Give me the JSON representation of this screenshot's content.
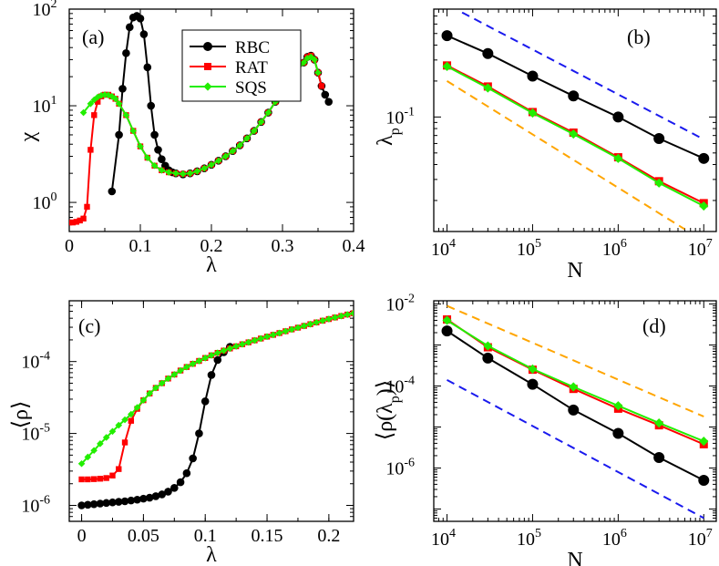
{
  "chart_data": [
    {
      "panel_label": "(a)",
      "type": "line",
      "xlabel": "λ",
      "ylabel": "χ",
      "xscale": "linear",
      "yscale": "log",
      "xlim": [
        0,
        0.4
      ],
      "ylim": [
        0.5,
        100
      ],
      "x_ticks": [
        0,
        0.1,
        0.2,
        0.3,
        0.4
      ],
      "x_tick_labels": [
        "0",
        "0.1",
        "0.2",
        "0.3",
        "0.4"
      ],
      "y_ticks": [
        1,
        10,
        100
      ],
      "y_tick_labels": [
        [
          "10",
          "0"
        ],
        [
          "10",
          "1"
        ],
        [
          "10",
          "2"
        ]
      ],
      "legend": {
        "position": "top-center",
        "entries": [
          "RBC",
          "RAT",
          "SQS"
        ]
      },
      "series": [
        {
          "name": "RBC",
          "color": "#000000",
          "marker": "circle",
          "x": [
            0.06,
            0.07,
            0.075,
            0.08,
            0.085,
            0.09,
            0.095,
            0.1,
            0.105,
            0.11,
            0.115,
            0.12,
            0.125,
            0.13,
            0.135,
            0.14,
            0.145,
            0.15,
            0.16,
            0.17,
            0.18,
            0.19,
            0.2,
            0.21,
            0.22,
            0.23,
            0.24,
            0.25,
            0.26,
            0.27,
            0.28,
            0.29,
            0.3,
            0.31,
            0.32,
            0.33,
            0.335,
            0.34,
            0.345,
            0.35,
            0.355,
            0.36,
            0.365
          ],
          "y": [
            1.3,
            5,
            15,
            35,
            65,
            82,
            85,
            80,
            55,
            25,
            10,
            5,
            3.5,
            2.8,
            2.4,
            2.15,
            2.05,
            2.0,
            1.95,
            2.0,
            2.1,
            2.25,
            2.45,
            2.7,
            3.0,
            3.4,
            3.9,
            4.6,
            5.5,
            6.8,
            8.5,
            11,
            14,
            18,
            23,
            28,
            32,
            33,
            30,
            22,
            16,
            13,
            11
          ]
        },
        {
          "name": "RAT",
          "color": "#ff0000",
          "marker": "square",
          "x": [
            0.0,
            0.005,
            0.01,
            0.015,
            0.02,
            0.025,
            0.03,
            0.035,
            0.04,
            0.045,
            0.05,
            0.055,
            0.06,
            0.065,
            0.07,
            0.08,
            0.09,
            0.1,
            0.11,
            0.12,
            0.13,
            0.14,
            0.15,
            0.16,
            0.17,
            0.18,
            0.19,
            0.2,
            0.21,
            0.22,
            0.23,
            0.24,
            0.25,
            0.26,
            0.27,
            0.28,
            0.29,
            0.3,
            0.31,
            0.32,
            0.33,
            0.335,
            0.34,
            0.345,
            0.35,
            0.355
          ],
          "y": [
            0.62,
            0.62,
            0.63,
            0.65,
            0.68,
            0.9,
            3.5,
            8,
            11,
            12.5,
            13,
            13,
            12.5,
            11.8,
            10.5,
            8,
            5.5,
            3.8,
            2.9,
            2.4,
            2.15,
            2.05,
            2.0,
            1.97,
            2.0,
            2.1,
            2.25,
            2.45,
            2.7,
            3.0,
            3.4,
            3.9,
            4.6,
            5.5,
            6.8,
            8.5,
            11,
            14,
            18,
            23,
            28,
            32,
            33,
            30,
            22,
            16
          ]
        },
        {
          "name": "SQS",
          "color": "#22ee00",
          "marker": "diamond",
          "x": [
            0.02,
            0.03,
            0.035,
            0.04,
            0.045,
            0.05,
            0.055,
            0.06,
            0.065,
            0.07,
            0.08,
            0.09,
            0.1,
            0.11,
            0.12,
            0.13,
            0.14,
            0.15,
            0.16,
            0.17,
            0.18,
            0.19,
            0.2,
            0.21,
            0.22,
            0.23,
            0.24,
            0.25,
            0.26,
            0.27,
            0.28,
            0.29,
            0.3,
            0.31,
            0.32,
            0.33,
            0.335,
            0.34,
            0.345,
            0.35
          ],
          "y": [
            8.5,
            10.5,
            11.5,
            12.3,
            12.8,
            13,
            12.9,
            12.5,
            11.8,
            10.5,
            8,
            5.5,
            3.8,
            2.9,
            2.4,
            2.15,
            2.05,
            2.0,
            1.97,
            2.0,
            2.1,
            2.25,
            2.45,
            2.7,
            3.0,
            3.4,
            3.9,
            4.6,
            5.5,
            6.8,
            8.5,
            11,
            14,
            18,
            23,
            28,
            31,
            32,
            30,
            22
          ]
        }
      ]
    },
    {
      "panel_label": "(b)",
      "type": "line",
      "xlabel": "N",
      "ylabel": "λp",
      "xscale": "log",
      "yscale": "log",
      "xlim": [
        7000,
        14000000
      ],
      "ylim": [
        0.011,
        0.8
      ],
      "x_ticks": [
        10000,
        100000,
        1000000,
        10000000
      ],
      "x_tick_labels": [
        [
          "10",
          "4"
        ],
        [
          "10",
          "5"
        ],
        [
          "10",
          "6"
        ],
        [
          "10",
          "7"
        ]
      ],
      "y_ticks": [
        0.1
      ],
      "y_tick_labels": [
        [
          "10",
          "-1"
        ]
      ],
      "series": [
        {
          "name": "RBC",
          "color": "#000000",
          "marker": "circle",
          "x": [
            10000,
            30000,
            100000,
            300000,
            1000000,
            3000000,
            10000000
          ],
          "y": [
            0.48,
            0.34,
            0.22,
            0.15,
            0.1,
            0.066,
            0.045
          ]
        },
        {
          "name": "RAT",
          "color": "#ff0000",
          "marker": "square",
          "x": [
            10000,
            30000,
            100000,
            300000,
            1000000,
            3000000,
            10000000
          ],
          "y": [
            0.27,
            0.18,
            0.11,
            0.074,
            0.046,
            0.029,
            0.019
          ]
        },
        {
          "name": "SQS",
          "color": "#22ee00",
          "marker": "diamond",
          "x": [
            10000,
            30000,
            100000,
            300000,
            1000000,
            3000000,
            10000000
          ],
          "y": [
            0.265,
            0.175,
            0.108,
            0.072,
            0.045,
            0.028,
            0.018
          ]
        },
        {
          "name": "guide-blue",
          "color": "#1a1aee",
          "dashed": true,
          "x": [
            15000,
            10000000
          ],
          "y": [
            0.75,
            0.065
          ]
        },
        {
          "name": "guide-orange",
          "color": "#ffa500",
          "dashed": true,
          "x": [
            10000,
            6000000
          ],
          "y": [
            0.2,
            0.0115
          ]
        }
      ]
    },
    {
      "panel_label": "(c)",
      "type": "line",
      "xlabel": "λ",
      "ylabel": "⟨ρ⟩",
      "xscale": "linear",
      "yscale": "log",
      "xlim": [
        -0.01,
        0.22
      ],
      "ylim": [
        6e-07,
        0.0007
      ],
      "x_ticks": [
        0,
        0.05,
        0.1,
        0.15,
        0.2
      ],
      "x_tick_labels": [
        "0",
        "0.05",
        "0.1",
        "0.15",
        "0.2"
      ],
      "y_ticks": [
        1e-06,
        1e-05,
        0.0001
      ],
      "y_tick_labels": [
        [
          "10",
          "-6"
        ],
        [
          "10",
          "-5"
        ],
        [
          "10",
          "-4"
        ]
      ],
      "series": [
        {
          "name": "RBC",
          "color": "#000000",
          "marker": "circle",
          "x": [
            0.0,
            0.005,
            0.01,
            0.015,
            0.02,
            0.025,
            0.03,
            0.035,
            0.04,
            0.045,
            0.05,
            0.055,
            0.06,
            0.065,
            0.07,
            0.075,
            0.08,
            0.085,
            0.09,
            0.095,
            0.1,
            0.105,
            0.11,
            0.115,
            0.12
          ],
          "y": [
            1e-06,
            1.02e-06,
            1.04e-06,
            1.06e-06,
            1.08e-06,
            1.1e-06,
            1.12e-06,
            1.14e-06,
            1.17e-06,
            1.2e-06,
            1.24e-06,
            1.28e-06,
            1.34e-06,
            1.42e-06,
            1.55e-06,
            1.75e-06,
            2.1e-06,
            2.8e-06,
            4.5e-06,
            1e-05,
            2.8e-05,
            6.5e-05,
            0.000105,
            0.000135,
            0.00016
          ]
        },
        {
          "name": "RAT",
          "color": "#ff0000",
          "marker": "square",
          "x": [
            0.0,
            0.005,
            0.01,
            0.015,
            0.02,
            0.025,
            0.03,
            0.035,
            0.04,
            0.045,
            0.05,
            0.055,
            0.06,
            0.065,
            0.07,
            0.075,
            0.08,
            0.085,
            0.09,
            0.095,
            0.1,
            0.105,
            0.11,
            0.115,
            0.12,
            0.125,
            0.13,
            0.135,
            0.14,
            0.145,
            0.15,
            0.155,
            0.16,
            0.165,
            0.17,
            0.175,
            0.18,
            0.185,
            0.19,
            0.195,
            0.2,
            0.205,
            0.21,
            0.215,
            0.22
          ],
          "y": [
            2.3e-06,
            2.3e-06,
            2.32e-06,
            2.35e-06,
            2.4e-06,
            2.6e-06,
            3.2e-06,
            7.5e-06,
            1.5e-05,
            2.2e-05,
            2.9e-05,
            3.6e-05,
            4.3e-05,
            5e-05,
            5.8e-05,
            6.6e-05,
            7.5e-05,
            8.4e-05,
            9.3e-05,
            0.000102,
            0.000112,
            0.000122,
            0.000132,
            0.000142,
            0.000152,
            0.000163,
            0.000174,
            0.000185,
            0.000197,
            0.000209,
            0.000222,
            0.000235,
            0.000249,
            0.000264,
            0.00028,
            0.000296,
            0.000313,
            0.000331,
            0.00035,
            0.00037,
            0.00039,
            0.00041,
            0.00043,
            0.00045,
            0.00047
          ]
        },
        {
          "name": "SQS",
          "color": "#22ee00",
          "marker": "diamond",
          "x": [
            0.0,
            0.005,
            0.01,
            0.015,
            0.02,
            0.025,
            0.03,
            0.035,
            0.04,
            0.045,
            0.05,
            0.055,
            0.06,
            0.065,
            0.07,
            0.075,
            0.08,
            0.085,
            0.09,
            0.095,
            0.1,
            0.105,
            0.11,
            0.115,
            0.12,
            0.125,
            0.13,
            0.135,
            0.14,
            0.145,
            0.15,
            0.155,
            0.16,
            0.165,
            0.17,
            0.175,
            0.18,
            0.185,
            0.19,
            0.195,
            0.2,
            0.205,
            0.21,
            0.215,
            0.22
          ],
          "y": [
            3.8e-06,
            4.7e-06,
            5.8e-06,
            7.2e-06,
            8.8e-06,
            1.07e-05,
            1.3e-05,
            1.55e-05,
            1.85e-05,
            2.3e-05,
            2.9e-05,
            3.6e-05,
            4.3e-05,
            5e-05,
            5.8e-05,
            6.6e-05,
            7.5e-05,
            8.4e-05,
            9.3e-05,
            0.000102,
            0.000112,
            0.000122,
            0.000132,
            0.000142,
            0.000152,
            0.000163,
            0.000174,
            0.000185,
            0.000197,
            0.000209,
            0.000222,
            0.000235,
            0.000249,
            0.000264,
            0.00028,
            0.000296,
            0.000313,
            0.000331,
            0.00035,
            0.00037,
            0.00039,
            0.00041,
            0.00043,
            0.00045,
            0.00047
          ]
        }
      ]
    },
    {
      "panel_label": "(d)",
      "type": "line",
      "xlabel": "N",
      "ylabel": "⟨ρ(λp)⟩",
      "xscale": "log",
      "yscale": "log",
      "xlim": [
        7000,
        14000000
      ],
      "ylim": [
        5e-08,
        0.012
      ],
      "x_ticks": [
        10000,
        100000,
        1000000,
        10000000
      ],
      "x_tick_labels": [
        [
          "10",
          "4"
        ],
        [
          "10",
          "5"
        ],
        [
          "10",
          "6"
        ],
        [
          "10",
          "7"
        ]
      ],
      "y_ticks": [
        1e-06,
        0.0001,
        0.01
      ],
      "y_tick_labels": [
        [
          "10",
          "-6"
        ],
        [
          "10",
          "-4"
        ],
        [
          "10",
          "-2"
        ]
      ],
      "series": [
        {
          "name": "RBC",
          "color": "#000000",
          "marker": "circle",
          "x": [
            10000,
            30000,
            100000,
            300000,
            1000000,
            3000000,
            10000000
          ],
          "y": [
            0.0022,
            0.00048,
            0.00011,
            2.6e-05,
            7e-06,
            1.8e-06,
            5e-07
          ]
        },
        {
          "name": "RAT",
          "color": "#ff0000",
          "marker": "square",
          "x": [
            10000,
            30000,
            100000,
            300000,
            1000000,
            3000000,
            10000000
          ],
          "y": [
            0.0042,
            0.00088,
            0.00025,
            8.5e-05,
            2.8e-05,
            1.1e-05,
            3.8e-06
          ]
        },
        {
          "name": "SQS",
          "color": "#22ee00",
          "marker": "diamond",
          "x": [
            10000,
            30000,
            100000,
            300000,
            1000000,
            3000000,
            10000000
          ],
          "y": [
            0.004,
            0.00095,
            0.00026,
            9.5e-05,
            3.3e-05,
            1.25e-05,
            4.5e-06
          ]
        },
        {
          "name": "guide-orange",
          "color": "#ffa500",
          "dashed": true,
          "x": [
            10000,
            10000000
          ],
          "y": [
            0.009,
            1.8e-05
          ]
        },
        {
          "name": "guide-blue",
          "color": "#1a1aee",
          "dashed": true,
          "x": [
            10000,
            10000000
          ],
          "y": [
            0.00014,
            6e-08
          ]
        }
      ]
    }
  ]
}
